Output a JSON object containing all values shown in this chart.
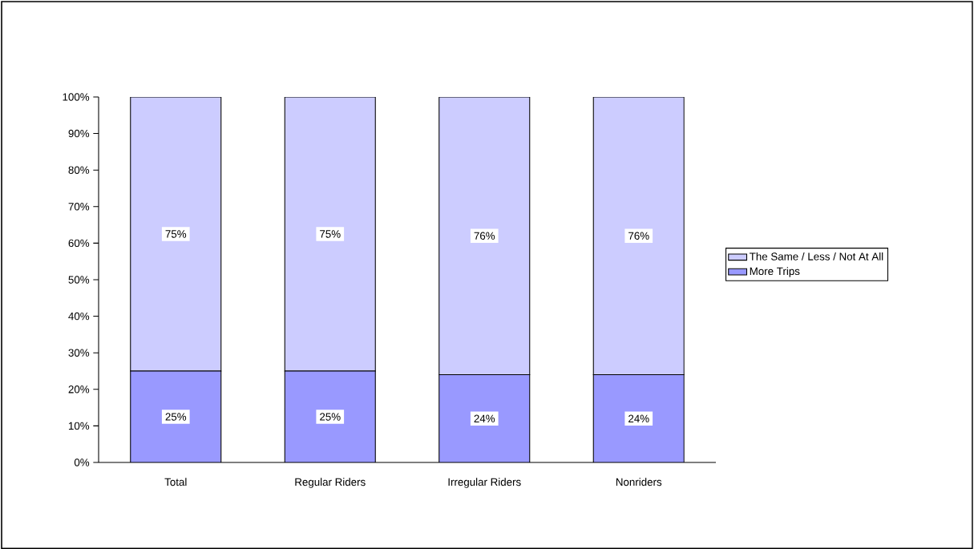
{
  "chart_data": {
    "type": "bar",
    "stacked": true,
    "categories": [
      "Total",
      "Regular Riders",
      "Irregular Riders",
      "Nonriders"
    ],
    "series": [
      {
        "name": "More Trips",
        "color": "#9999ff",
        "values": [
          25,
          25,
          24,
          24
        ],
        "value_labels": [
          "25%",
          "25%",
          "24%",
          "24%"
        ]
      },
      {
        "name": "The Same / Less / Not At All",
        "color": "#ccccff",
        "values": [
          75,
          75,
          76,
          76
        ],
        "value_labels": [
          "75%",
          "75%",
          "76%",
          "76%"
        ]
      }
    ],
    "ylim": [
      0,
      100
    ],
    "yticks": [
      {
        "value": 0,
        "label": "0%"
      },
      {
        "value": 10,
        "label": "10%"
      },
      {
        "value": 20,
        "label": "20%"
      },
      {
        "value": 30,
        "label": "30%"
      },
      {
        "value": 40,
        "label": "40%"
      },
      {
        "value": 50,
        "label": "50%"
      },
      {
        "value": 60,
        "label": "60%"
      },
      {
        "value": 70,
        "label": "70%"
      },
      {
        "value": 80,
        "label": "80%"
      },
      {
        "value": 90,
        "label": "90%"
      },
      {
        "value": 100,
        "label": "100%"
      }
    ],
    "legend": "right"
  }
}
